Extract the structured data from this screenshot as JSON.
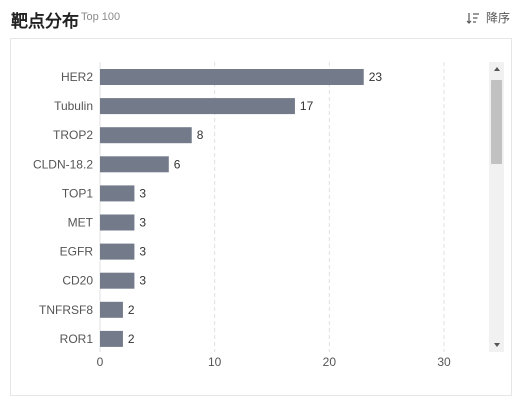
{
  "header": {
    "title": "靶点分布",
    "subtitle": "Top 100",
    "sort_label": "降序"
  },
  "icons": {
    "sort": "sort-descending-icon",
    "scroll_up": "triangle-up-icon",
    "scroll_down": "triangle-down-icon"
  },
  "colors": {
    "bar": "#737a89",
    "grid": "#e0e0e0",
    "scrollbar_thumb": "#c1c1c1"
  },
  "chart_data": {
    "type": "bar",
    "orientation": "horizontal",
    "categories": [
      "HER2",
      "Tubulin",
      "TROP2",
      "CLDN-18.2",
      "TOP1",
      "MET",
      "EGFR",
      "CD20",
      "TNFRSF8",
      "ROR1"
    ],
    "values": [
      23,
      17,
      8,
      6,
      3,
      3,
      3,
      3,
      2,
      2
    ],
    "xlim": [
      0,
      30
    ],
    "xticks": [
      0,
      10,
      20,
      30
    ],
    "grid": "vertical dashed"
  }
}
